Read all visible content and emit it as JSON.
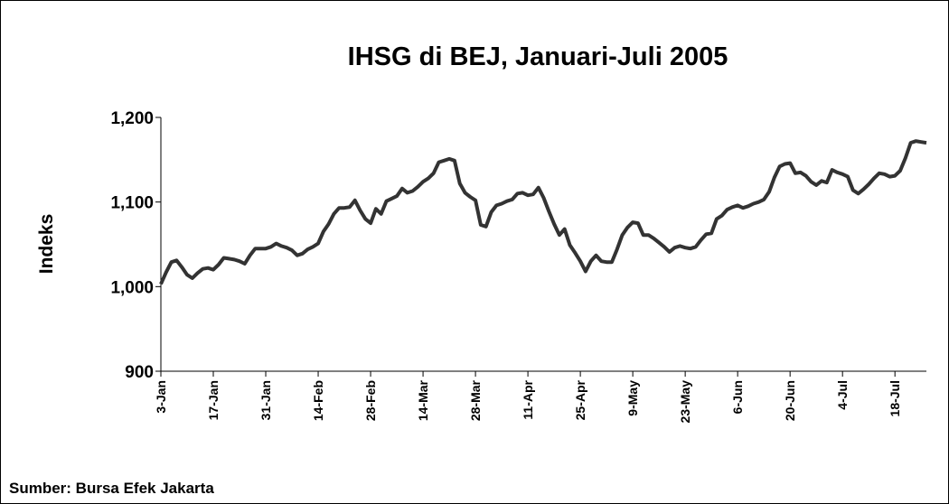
{
  "chart_data": {
    "type": "line",
    "title": "IHSG di BEJ, Januari-Juli 2005",
    "y_label": "Indeks",
    "source": "Sumber: Bursa Efek Jakarta",
    "color": "#333333",
    "categories": [
      "3-Jan",
      null,
      null,
      null,
      null,
      null,
      null,
      null,
      null,
      null,
      "17-Jan",
      null,
      null,
      null,
      null,
      null,
      null,
      null,
      null,
      null,
      "31-Jan",
      null,
      null,
      null,
      null,
      null,
      null,
      null,
      null,
      null,
      "14-Feb",
      null,
      null,
      null,
      null,
      null,
      null,
      null,
      null,
      null,
      "28-Feb",
      null,
      null,
      null,
      null,
      null,
      null,
      null,
      null,
      null,
      "14-Mar",
      null,
      null,
      null,
      null,
      null,
      null,
      null,
      null,
      null,
      "28-Mar",
      null,
      null,
      null,
      null,
      null,
      null,
      null,
      null,
      null,
      "11-Apr",
      null,
      null,
      null,
      null,
      null,
      null,
      null,
      null,
      null,
      "25-Apr",
      null,
      null,
      null,
      null,
      null,
      null,
      null,
      null,
      null,
      "9-May",
      null,
      null,
      null,
      null,
      null,
      null,
      null,
      null,
      null,
      "23-May",
      null,
      null,
      null,
      null,
      null,
      null,
      null,
      null,
      null,
      "6-Jun",
      null,
      null,
      null,
      null,
      null,
      null,
      null,
      null,
      null,
      "20-Jun",
      null,
      null,
      null,
      null,
      null,
      null,
      null,
      null,
      null,
      "4-Jul",
      null,
      null,
      null,
      null,
      null,
      null,
      null,
      null,
      null,
      "18-Jul",
      null,
      null,
      null,
      null,
      null,
      null
    ],
    "values": [
      1003,
      1017,
      1029,
      1031,
      1023,
      1014,
      1010,
      1016,
      1021,
      1022,
      1020,
      1026,
      1034,
      1033,
      1032,
      1030,
      1027,
      1037,
      1045,
      1045,
      1045,
      1047,
      1051,
      1048,
      1046,
      1043,
      1037,
      1039,
      1044,
      1047,
      1051,
      1065,
      1074,
      1086,
      1093,
      1093,
      1094,
      1102,
      1090,
      1080,
      1075,
      1092,
      1086,
      1101,
      1104,
      1107,
      1116,
      1111,
      1113,
      1118,
      1124,
      1128,
      1134,
      1147,
      1149,
      1151,
      1149,
      1122,
      1111,
      1106,
      1102,
      1073,
      1071,
      1088,
      1096,
      1098,
      1101,
      1103,
      1110,
      1111,
      1108,
      1109,
      1117,
      1105,
      1089,
      1074,
      1061,
      1068,
      1049,
      1040,
      1030,
      1018,
      1030,
      1037,
      1030,
      1029,
      1029,
      1044,
      1061,
      1070,
      1076,
      1075,
      1061,
      1061,
      1057,
      1052,
      1047,
      1041,
      1046,
      1048,
      1046,
      1045,
      1047,
      1055,
      1062,
      1063,
      1080,
      1084,
      1091,
      1094,
      1096,
      1093,
      1095,
      1098,
      1100,
      1103,
      1112,
      1129,
      1142,
      1145,
      1146,
      1134,
      1135,
      1131,
      1124,
      1120,
      1125,
      1123,
      1138,
      1135,
      1133,
      1130,
      1114,
      1110,
      1115,
      1121,
      1128,
      1134,
      1133,
      1130,
      1131,
      1137,
      1152,
      1170,
      1172,
      1171,
      1170
    ],
    "ylim": [
      900,
      1200
    ],
    "yticks": [
      900,
      {
        "value": 1000,
        "label": "1,000"
      },
      {
        "value": 1100,
        "label": "1,100"
      },
      {
        "value": 1200,
        "label": "1,200"
      }
    ],
    "grid": false
  }
}
